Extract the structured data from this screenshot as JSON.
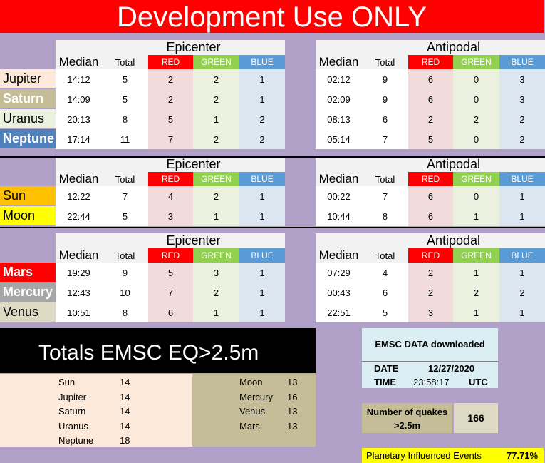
{
  "title": "Development Use ONLY",
  "headers": {
    "epicenter": "Epicenter",
    "antipodal": "Antipodal",
    "median": "Median",
    "total": "Total",
    "red": "RED",
    "green": "GREEN",
    "blue": "BLUE"
  },
  "groups": [
    {
      "planets": [
        {
          "name": "Jupiter",
          "bg": "#fde9d9",
          "fg": "#000000",
          "bold": false,
          "epicenter": {
            "median": "14:12",
            "total": "5",
            "red": "2",
            "green": "2",
            "blue": "1"
          },
          "antipodal": {
            "median": "02:12",
            "total": "9",
            "red": "6",
            "green": "0",
            "blue": "3"
          }
        },
        {
          "name": "Saturn",
          "bg": "#c4bd97",
          "fg": "#ffffff",
          "bold": true,
          "epicenter": {
            "median": "14:09",
            "total": "5",
            "red": "2",
            "green": "2",
            "blue": "1"
          },
          "antipodal": {
            "median": "02:09",
            "total": "9",
            "red": "6",
            "green": "0",
            "blue": "3"
          }
        },
        {
          "name": "Uranus",
          "bg": "#ebf1de",
          "fg": "#000000",
          "bold": false,
          "epicenter": {
            "median": "20:13",
            "total": "8",
            "red": "5",
            "green": "1",
            "blue": "2"
          },
          "antipodal": {
            "median": "08:13",
            "total": "6",
            "red": "2",
            "green": "2",
            "blue": "2"
          }
        },
        {
          "name": "Neptune",
          "bg": "#4f81bd",
          "fg": "#ffffff",
          "bold": true,
          "epicenter": {
            "median": "17:14",
            "total": "11",
            "red": "7",
            "green": "2",
            "blue": "2"
          },
          "antipodal": {
            "median": "05:14",
            "total": "7",
            "red": "5",
            "green": "0",
            "blue": "2"
          }
        }
      ]
    },
    {
      "planets": [
        {
          "name": "Sun",
          "bg": "#ffc000",
          "fg": "#000000",
          "bold": false,
          "epicenter": {
            "median": "12:22",
            "total": "7",
            "red": "4",
            "green": "2",
            "blue": "1"
          },
          "antipodal": {
            "median": "00:22",
            "total": "7",
            "red": "6",
            "green": "0",
            "blue": "1"
          }
        },
        {
          "name": "Moon",
          "bg": "#ffff00",
          "fg": "#000000",
          "bold": false,
          "epicenter": {
            "median": "22:44",
            "total": "5",
            "red": "3",
            "green": "1",
            "blue": "1"
          },
          "antipodal": {
            "median": "10:44",
            "total": "8",
            "red": "6",
            "green": "1",
            "blue": "1"
          }
        }
      ]
    },
    {
      "planets": [
        {
          "name": "Mars",
          "bg": "#ff0000",
          "fg": "#ffffff",
          "bold": true,
          "epicenter": {
            "median": "19:29",
            "total": "9",
            "red": "5",
            "green": "3",
            "blue": "1"
          },
          "antipodal": {
            "median": "07:29",
            "total": "4",
            "red": "2",
            "green": "1",
            "blue": "1"
          }
        },
        {
          "name": "Mercury",
          "bg": "#a6a6a6",
          "fg": "#ffffff",
          "bold": true,
          "epicenter": {
            "median": "12:43",
            "total": "10",
            "red": "7",
            "green": "2",
            "blue": "1"
          },
          "antipodal": {
            "median": "00:43",
            "total": "6",
            "red": "2",
            "green": "2",
            "blue": "2"
          }
        },
        {
          "name": "Venus",
          "bg": "#ddd9c3",
          "fg": "#000000",
          "bold": false,
          "epicenter": {
            "median": "10:51",
            "total": "8",
            "red": "6",
            "green": "1",
            "blue": "1"
          },
          "antipodal": {
            "median": "22:51",
            "total": "5",
            "red": "3",
            "green": "1",
            "blue": "1"
          }
        }
      ]
    }
  ],
  "totals": {
    "banner": "Totals EMSC EQ>2.5m",
    "left": [
      {
        "name": "Sun",
        "value": "14"
      },
      {
        "name": "Jupiter",
        "value": "14"
      },
      {
        "name": "Saturn",
        "value": "14"
      },
      {
        "name": "Uranus",
        "value": "14"
      },
      {
        "name": "Neptune",
        "value": "18"
      }
    ],
    "right": [
      {
        "name": "Moon",
        "value": "13"
      },
      {
        "name": "Mercury",
        "value": "16"
      },
      {
        "name": "Venus",
        "value": "13"
      },
      {
        "name": "Mars",
        "value": "13"
      }
    ]
  },
  "emsc": {
    "heading": "EMSC DATA downloaded",
    "date_label": "DATE",
    "date_value": "12/27/2020",
    "time_label": "TIME",
    "time_value": "23:58:17",
    "tz": "UTC"
  },
  "quakes": {
    "label": "Number of quakes >2.5m",
    "value": "166"
  },
  "planetary": {
    "label": "Planetary Influenced Events",
    "value": "77.71%"
  }
}
